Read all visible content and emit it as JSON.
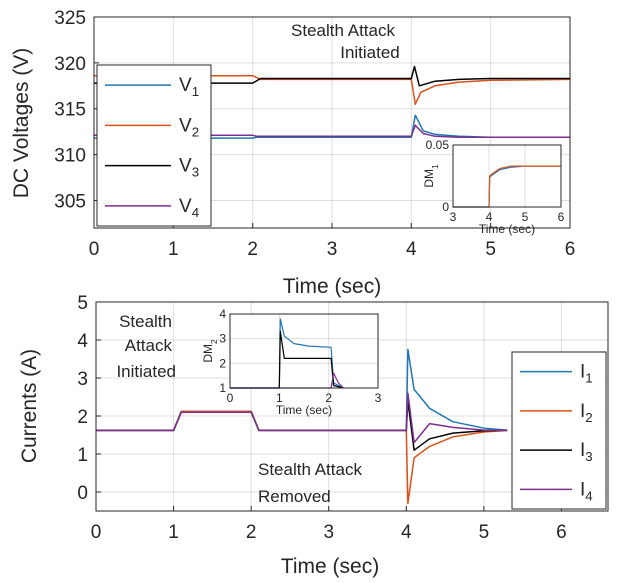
{
  "chart_data": [
    {
      "type": "line",
      "xlabel": "Time (sec)",
      "ylabel": "DC Voltages (V)",
      "xlim": [
        0,
        6
      ],
      "ylim": [
        302,
        325
      ],
      "xticks": [
        0,
        1,
        2,
        3,
        4,
        5,
        6
      ],
      "yticks": [
        305,
        310,
        315,
        320,
        325
      ],
      "grid": true,
      "legend_placement": "left",
      "annotation": [
        "Stealth Attack",
        "Initiated"
      ],
      "series": [
        {
          "name": "V",
          "sub": "1",
          "color": "#1f77b4",
          "x": [
            0,
            2,
            2.05,
            4,
            4.05,
            4.15,
            4.3,
            4.6,
            5,
            6
          ],
          "y": [
            311.8,
            311.8,
            311.9,
            311.9,
            314.3,
            312.6,
            312.2,
            312.0,
            311.9,
            311.9
          ]
        },
        {
          "name": "V",
          "sub": "2",
          "color": "#d95319",
          "x": [
            0,
            2,
            2.1,
            4,
            4.05,
            4.12,
            4.3,
            4.6,
            5,
            6
          ],
          "y": [
            318.6,
            318.6,
            318.2,
            318.2,
            315.5,
            316.8,
            317.5,
            317.9,
            318.1,
            318.2
          ]
        },
        {
          "name": "V",
          "sub": "3",
          "color": "#000000",
          "x": [
            0,
            2,
            2.1,
            4,
            4.04,
            4.1,
            4.3,
            4.6,
            5,
            6
          ],
          "y": [
            317.8,
            317.8,
            318.3,
            318.3,
            319.6,
            317.5,
            318.0,
            318.2,
            318.3,
            318.3
          ]
        },
        {
          "name": "V",
          "sub": "4",
          "color": "#7e2f8e",
          "x": [
            0,
            2,
            2.05,
            4,
            4.05,
            4.15,
            4.3,
            4.6,
            5,
            6
          ],
          "y": [
            312.1,
            312.1,
            312.0,
            312.0,
            313.2,
            312.3,
            312.0,
            311.9,
            311.9,
            311.9
          ]
        }
      ],
      "inset": {
        "ylabel": "DM",
        "ylabel_sub": "1",
        "xlabel": "Time (sec)",
        "xlim": [
          3,
          6
        ],
        "ylim": [
          0,
          0.05
        ],
        "xticks": [
          3,
          4,
          5,
          6
        ],
        "ytick_labels": [
          "0",
          "0.05"
        ],
        "series": [
          {
            "color": "#1f77b4",
            "x": [
              3,
              4,
              4.02,
              4.1,
              4.3,
              4.6,
              5,
              6
            ],
            "y": [
              0,
              0,
              0.024,
              0.026,
              0.03,
              0.032,
              0.033,
              0.033
            ]
          },
          {
            "color": "#d95319",
            "x": [
              3,
              4,
              4.02,
              4.1,
              4.3,
              4.6,
              5,
              6
            ],
            "y": [
              0,
              0,
              0.025,
              0.027,
              0.031,
              0.033,
              0.033,
              0.033
            ]
          }
        ]
      }
    },
    {
      "type": "line",
      "xlabel": "Time (sec)",
      "ylabel": "Currents (A)",
      "xlim": [
        0,
        6.6
      ],
      "ylim": [
        -0.5,
        5
      ],
      "xticks": [
        0,
        1,
        2,
        3,
        4,
        5,
        6
      ],
      "yticks": [
        0,
        1,
        2,
        3,
        4,
        5
      ],
      "grid": true,
      "legend_placement": "right",
      "annotations": [
        {
          "lines": [
            "Stealth",
            "Attack",
            "Initiated"
          ]
        },
        {
          "lines": [
            "Stealth Attack",
            "Removed"
          ]
        }
      ],
      "series": [
        {
          "name": "I",
          "sub": "1",
          "color": "#1f77b4",
          "x": [
            0,
            1,
            1.1,
            2,
            2.1,
            4,
            4.02,
            4.1,
            4.3,
            4.6,
            5,
            5.3
          ],
          "y": [
            1.62,
            1.62,
            2.12,
            2.12,
            1.62,
            1.62,
            3.75,
            2.7,
            2.2,
            1.85,
            1.68,
            1.63
          ]
        },
        {
          "name": "I",
          "sub": "2",
          "color": "#d95319",
          "x": [
            0,
            1,
            1.1,
            2,
            2.1,
            4,
            4.02,
            4.1,
            4.3,
            4.6,
            5,
            5.3
          ],
          "y": [
            1.62,
            1.62,
            2.12,
            2.12,
            1.62,
            1.62,
            -0.3,
            0.9,
            1.2,
            1.45,
            1.58,
            1.62
          ]
        },
        {
          "name": "I",
          "sub": "3",
          "color": "#000000",
          "x": [
            0,
            1,
            1.1,
            2,
            2.1,
            4,
            4.02,
            4.1,
            4.3,
            4.6,
            5,
            5.3
          ],
          "y": [
            1.62,
            1.62,
            2.1,
            2.1,
            1.62,
            1.62,
            2.4,
            1.1,
            1.4,
            1.55,
            1.61,
            1.62
          ]
        },
        {
          "name": "I",
          "sub": "4",
          "color": "#7e2f8e",
          "x": [
            0,
            1,
            1.1,
            2,
            2.1,
            4,
            4.02,
            4.1,
            4.3,
            4.6,
            5,
            5.3
          ],
          "y": [
            1.62,
            1.62,
            2.1,
            2.1,
            1.62,
            1.62,
            2.6,
            1.3,
            1.8,
            1.7,
            1.63,
            1.62
          ]
        }
      ],
      "inset": {
        "ylabel": "DM",
        "ylabel_sub": "2",
        "xlabel": "Time (sec)",
        "xlim": [
          0,
          3
        ],
        "ylim": [
          1,
          4
        ],
        "xticks": [
          0,
          1,
          2,
          3
        ],
        "yticks": [
          1,
          2,
          3,
          4
        ],
        "series": [
          {
            "color": "#1f77b4",
            "x": [
              0,
              1,
              1.02,
              1.1,
              1.3,
              1.6,
              2.05,
              2.1,
              2.3
            ],
            "y": [
              1,
              1,
              3.8,
              3.1,
              2.8,
              2.7,
              2.65,
              1.2,
              1
            ]
          },
          {
            "color": "#000000",
            "x": [
              0,
              1,
              1.02,
              1.1,
              1.3,
              1.6,
              2.05,
              2.1,
              2.3
            ],
            "y": [
              1,
              1,
              3.3,
              2.2,
              2.2,
              2.2,
              2.2,
              1.1,
              1
            ]
          },
          {
            "color": "#7e2f8e",
            "x": [
              0,
              1,
              2.05,
              2.1,
              2.2,
              2.3
            ],
            "y": [
              1,
              1,
              1,
              1.6,
              1.2,
              1
            ]
          }
        ]
      }
    }
  ]
}
